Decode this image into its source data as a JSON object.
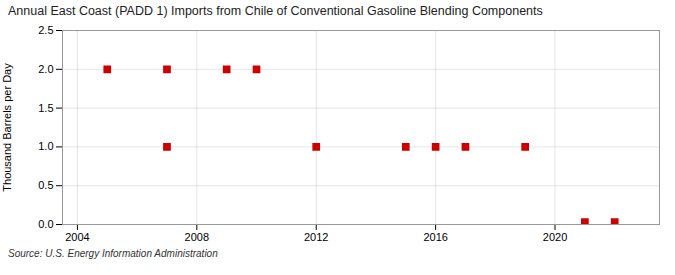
{
  "chart_data": {
    "type": "scatter",
    "title": "Annual East Coast (PADD 1) Imports from Chile of Conventional Gasoline Blending Components",
    "ylabel": "Thousand Barrels per Day",
    "source": "Source: U.S. Energy Information Administration",
    "x": [
      2005,
      2007,
      2007,
      2009,
      2010,
      2012,
      2015,
      2016,
      2017,
      2019,
      2021,
      2022
    ],
    "values": [
      2.0,
      2.0,
      1.0,
      2.0,
      2.0,
      1.0,
      1.0,
      1.0,
      1.0,
      1.0,
      0.03,
      0.03
    ],
    "color": "#cc0000",
    "marker": "square",
    "xlim": [
      2003.5,
      2023.5
    ],
    "xticks": [
      2004,
      2008,
      2012,
      2016,
      2020
    ],
    "ylim": [
      0.0,
      2.5
    ],
    "yticks": [
      {
        "value": 0,
        "label": "0.0"
      },
      0.5,
      {
        "value": 1,
        "label": "1.0"
      },
      1.5,
      {
        "value": 2,
        "label": "2.0"
      },
      2.5
    ],
    "grid": true
  }
}
